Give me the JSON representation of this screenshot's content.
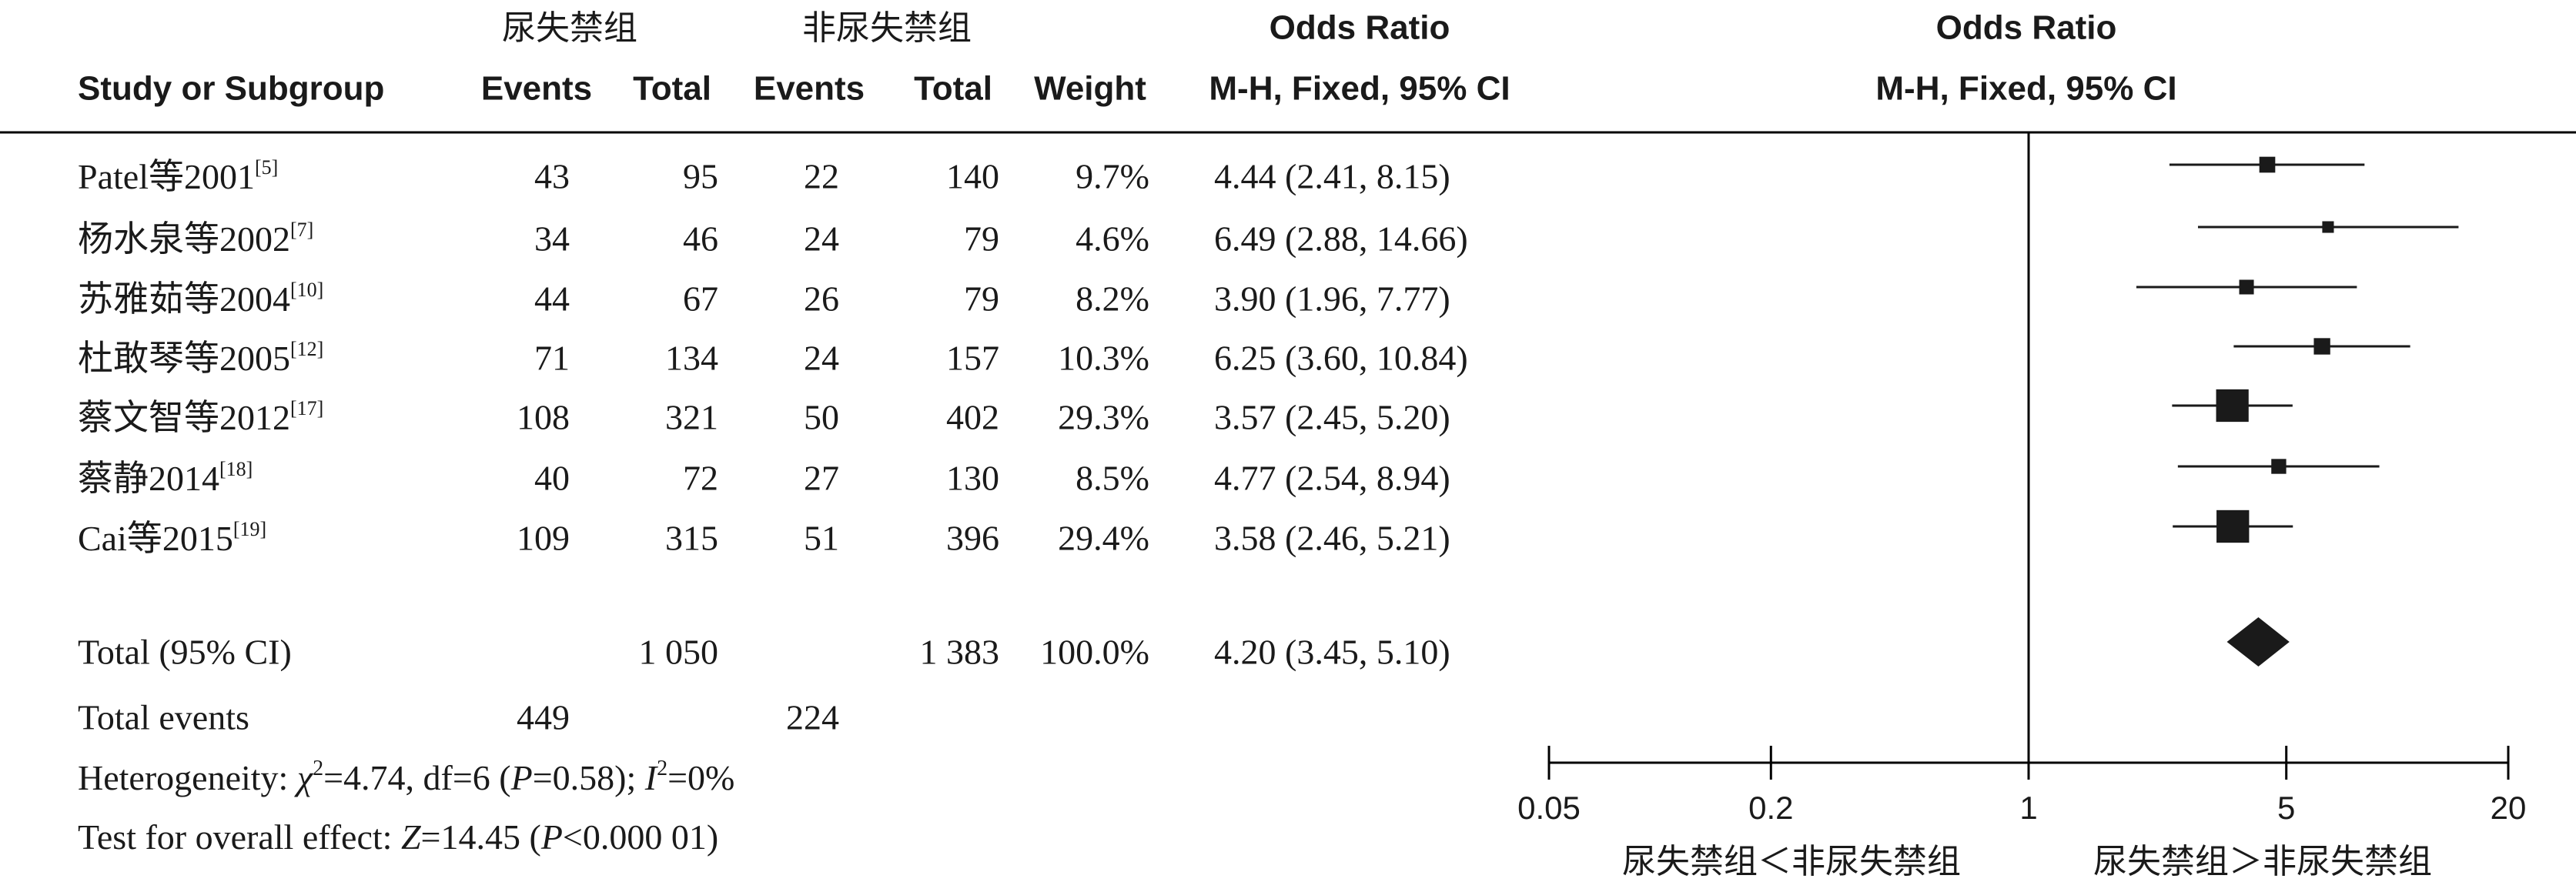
{
  "chart_data": {
    "type": "forest",
    "group_headers": [
      "尿失禁组",
      "非尿失禁组"
    ],
    "columns": [
      "Study or Subgroup",
      "Events",
      "Total",
      "Events",
      "Total",
      "Weight",
      "Odds Ratio",
      "M-H, Fixed, 95% CI"
    ],
    "plot_header": [
      "Odds Ratio",
      "M-H, Fixed, 95% CI"
    ],
    "rows": [
      {
        "study": "Patel等2001",
        "ref": "[5]",
        "values": [
          43,
          95,
          22,
          140
        ],
        "weight": 9.7,
        "weight_label": "9.7%",
        "or": 4.44,
        "ci": [
          2.41,
          8.15
        ],
        "ci_label": "4.44 (2.41, 8.15)"
      },
      {
        "study": "杨水泉等2002",
        "ref": "[7]",
        "values": [
          34,
          46,
          24,
          79
        ],
        "weight": 4.6,
        "weight_label": "4.6%",
        "or": 6.49,
        "ci": [
          2.88,
          14.66
        ],
        "ci_label": "6.49 (2.88, 14.66)"
      },
      {
        "study": "苏雅茹等2004",
        "ref": "[10]",
        "values": [
          44,
          67,
          26,
          79
        ],
        "weight": 8.2,
        "weight_label": "8.2%",
        "or": 3.9,
        "ci": [
          1.96,
          7.77
        ],
        "ci_label": "3.90 (1.96, 7.77)"
      },
      {
        "study": "杜敢琴等2005",
        "ref": "[12]",
        "values": [
          71,
          134,
          24,
          157
        ],
        "weight": 10.3,
        "weight_label": "10.3%",
        "or": 6.25,
        "ci": [
          3.6,
          10.84
        ],
        "ci_label": "6.25 (3.60, 10.84)"
      },
      {
        "study": "蔡文智等2012",
        "ref": "[17]",
        "values": [
          108,
          321,
          50,
          402
        ],
        "weight": 29.3,
        "weight_label": "29.3%",
        "or": 3.57,
        "ci": [
          2.45,
          5.2
        ],
        "ci_label": "3.57 (2.45, 5.20)"
      },
      {
        "study": "蔡静2014",
        "ref": "[18]",
        "values": [
          40,
          72,
          27,
          130
        ],
        "weight": 8.5,
        "weight_label": "8.5%",
        "or": 4.77,
        "ci": [
          2.54,
          8.94
        ],
        "ci_label": "4.77 (2.54, 8.94)"
      },
      {
        "study": "Cai等2015",
        "ref": "[19]",
        "values": [
          109,
          315,
          51,
          396
        ],
        "weight": 29.4,
        "weight_label": "29.4%",
        "or": 3.58,
        "ci": [
          2.46,
          5.21
        ],
        "ci_label": "3.58 (2.46, 5.21)"
      }
    ],
    "total": {
      "label": "Total (95% CI)",
      "totals": [
        {
          "value": 1050,
          "label": "1 050"
        },
        {
          "value": 1383,
          "label": "1 383"
        }
      ],
      "weight": 100,
      "weight_label": "100.0%",
      "or": 4.2,
      "ci": [
        3.45,
        5.1
      ],
      "ci_label": "4.20 (3.45, 5.10)"
    },
    "total_events": {
      "label": "Total events",
      "values": [
        449,
        224
      ]
    },
    "heterogeneity": [
      {
        "text": "Heterogeneity: "
      },
      {
        "text": "χ",
        "italic": true
      },
      {
        "text": "2",
        "sup": true
      },
      {
        "text": "=4.74, df=6 ("
      },
      {
        "text": "P",
        "italic": true
      },
      {
        "text": "=0.58); "
      },
      {
        "text": "I",
        "italic": true
      },
      {
        "text": "2",
        "sup": true
      },
      {
        "text": "=0%"
      }
    ],
    "overall_effect": [
      {
        "text": "Test for overall effect: "
      },
      {
        "text": "Z",
        "italic": true
      },
      {
        "text": "=14.45 ("
      },
      {
        "text": "P",
        "italic": true
      },
      {
        "text": "<0.000 01)"
      }
    ],
    "log_scale": true,
    "xlim": [
      0.05,
      20
    ],
    "xticks": [
      0.05,
      0.2,
      1,
      5,
      20
    ],
    "null_value": 1,
    "xlabels": [
      "尿失禁组＜非尿失禁组",
      "尿失禁组＞非尿失禁组"
    ],
    "color": "#1a1a1a"
  }
}
